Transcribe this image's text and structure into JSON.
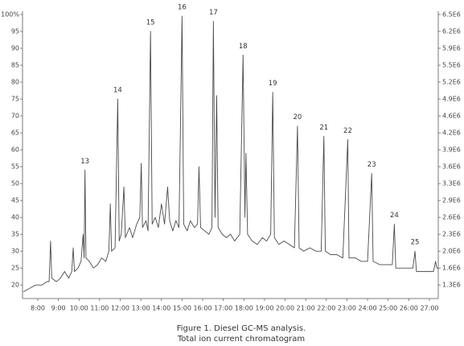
{
  "chart_data": {
    "type": "line",
    "caption": [
      "Figure 1.  Diesel GC-MS analysis.",
      "Total ion current chromatogram"
    ],
    "x": [
      7.3,
      7.6,
      7.9,
      8.2,
      8.45,
      8.55,
      8.62,
      8.68,
      8.9,
      9.1,
      9.3,
      9.5,
      9.65,
      9.72,
      9.78,
      9.95,
      10.1,
      10.2,
      10.25,
      10.29,
      10.34,
      10.5,
      10.7,
      10.9,
      11.1,
      11.3,
      11.45,
      11.52,
      11.58,
      11.75,
      11.88,
      11.95,
      12.05,
      12.18,
      12.25,
      12.45,
      12.6,
      12.8,
      12.95,
      13.02,
      13.08,
      13.25,
      13.35,
      13.47,
      13.55,
      13.7,
      13.85,
      14.0,
      14.15,
      14.3,
      14.4,
      14.55,
      14.7,
      14.85,
      15.0,
      15.08,
      15.25,
      15.4,
      15.6,
      15.75,
      15.82,
      15.9,
      16.1,
      16.3,
      16.45,
      16.52,
      16.6,
      16.68,
      16.75,
      16.95,
      17.15,
      17.35,
      17.55,
      17.8,
      17.96,
      18.05,
      18.1,
      18.18,
      18.4,
      18.65,
      18.9,
      19.1,
      19.3,
      19.4,
      19.48,
      19.7,
      19.95,
      20.2,
      20.45,
      20.6,
      20.68,
      20.9,
      21.2,
      21.5,
      21.75,
      21.88,
      21.95,
      22.2,
      22.5,
      22.8,
      23.04,
      23.1,
      23.4,
      23.7,
      24.0,
      24.2,
      24.27,
      24.6,
      24.9,
      25.2,
      25.3,
      25.37,
      25.7,
      26.0,
      26.2,
      26.3,
      26.37,
      26.7,
      27.0,
      27.2,
      27.3,
      27.36,
      27.43
    ],
    "series": [
      {
        "color": "#4a4a4a",
        "values": [
          18,
          19,
          20,
          20,
          21,
          21,
          33,
          22,
          21,
          22,
          24,
          22,
          24,
          31,
          24,
          25,
          27,
          35,
          28,
          54,
          28,
          27,
          25,
          26,
          28,
          27,
          30,
          44,
          30,
          31,
          75,
          33,
          35,
          49,
          34,
          37,
          34,
          38,
          40,
          56,
          37,
          39,
          36,
          95,
          38,
          40,
          37,
          44,
          38,
          49,
          39,
          36,
          39,
          37,
          99.5,
          38,
          36,
          39,
          37,
          38,
          55,
          37,
          36,
          35,
          37,
          98,
          40,
          76,
          37,
          35,
          34,
          35,
          33,
          35,
          88,
          40,
          59,
          35,
          33,
          32,
          34,
          33,
          35,
          77,
          34,
          32,
          33,
          32,
          31,
          67,
          31,
          30,
          31,
          30,
          30,
          64,
          30,
          29,
          29,
          28,
          63,
          28,
          28,
          27,
          27,
          53,
          27,
          26,
          26,
          26,
          38,
          25,
          25,
          25,
          25,
          30,
          24,
          24,
          24,
          24,
          27,
          25,
          25
        ]
      }
    ],
    "peaks": [
      {
        "label": "13",
        "x": 10.29,
        "y": 54
      },
      {
        "label": "14",
        "x": 11.88,
        "y": 75
      },
      {
        "label": "15",
        "x": 13.47,
        "y": 95
      },
      {
        "label": "16",
        "x": 15.0,
        "y": 99.5
      },
      {
        "label": "17",
        "x": 16.52,
        "y": 98
      },
      {
        "label": "18",
        "x": 17.96,
        "y": 88
      },
      {
        "label": "19",
        "x": 19.4,
        "y": 77
      },
      {
        "label": "20",
        "x": 20.6,
        "y": 67
      },
      {
        "label": "21",
        "x": 21.88,
        "y": 64
      },
      {
        "label": "22",
        "x": 23.04,
        "y": 63
      },
      {
        "label": "23",
        "x": 24.2,
        "y": 53
      },
      {
        "label": "24",
        "x": 25.3,
        "y": 38
      },
      {
        "label": "25",
        "x": 26.3,
        "y": 30
      }
    ],
    "xlim": [
      7.26,
      27.43
    ],
    "xticks": [
      {
        "value": 8,
        "label": "8:00"
      },
      {
        "value": 9,
        "label": "9:00"
      },
      {
        "value": 10,
        "label": "10:00"
      },
      {
        "value": 11,
        "label": "11:00"
      },
      {
        "value": 12,
        "label": "12:00"
      },
      {
        "value": 13,
        "label": "13:00"
      },
      {
        "value": 14,
        "label": "14:00"
      },
      {
        "value": 15,
        "label": "15:00"
      },
      {
        "value": 16,
        "label": "16:00"
      },
      {
        "value": 17,
        "label": "17:00"
      },
      {
        "value": 18,
        "label": "18:00"
      },
      {
        "value": 19,
        "label": "19:00"
      },
      {
        "value": 20,
        "label": "20:00"
      },
      {
        "value": 21,
        "label": "21:00"
      },
      {
        "value": 22,
        "label": "22:00"
      },
      {
        "value": 23,
        "label": "23:00"
      },
      {
        "value": 24,
        "label": "24:00"
      },
      {
        "value": 25,
        "label": "25:00"
      },
      {
        "value": 26,
        "label": "26:00"
      },
      {
        "value": 27,
        "label": "27:00"
      }
    ],
    "ylim": [
      16,
      100
    ],
    "yticks": [
      {
        "value": 100,
        "label": "100%"
      },
      95,
      90,
      85,
      80,
      75,
      70,
      65,
      60,
      55,
      50,
      45,
      40,
      35,
      30,
      25,
      20
    ],
    "y2lim": [
      1040000,
      6500000
    ],
    "y2ticks": [
      {
        "value": 6500000,
        "label": "6.5E6"
      },
      {
        "value": 6175000,
        "label": "6.2E6"
      },
      {
        "value": 5850000,
        "label": "5.9E6"
      },
      {
        "value": 5525000,
        "label": "5.5E6"
      },
      {
        "value": 5200000,
        "label": "5.2E6"
      },
      {
        "value": 4875000,
        "label": "4.9E6"
      },
      {
        "value": 4550000,
        "label": "4.6E6"
      },
      {
        "value": 4225000,
        "label": "4.2E6"
      },
      {
        "value": 3900000,
        "label": "3.9E6"
      },
      {
        "value": 3575000,
        "label": "3.6E6"
      },
      {
        "value": 3250000,
        "label": "3.3E6"
      },
      {
        "value": 2925000,
        "label": "2.9E6"
      },
      {
        "value": 2600000,
        "label": "2.6E6"
      },
      {
        "value": 2275000,
        "label": "2.3E6"
      },
      {
        "value": 1950000,
        "label": "2.0E6"
      },
      {
        "value": 1625000,
        "label": "1.6E6"
      },
      {
        "value": 1300000,
        "label": "1.3E6"
      }
    ]
  }
}
